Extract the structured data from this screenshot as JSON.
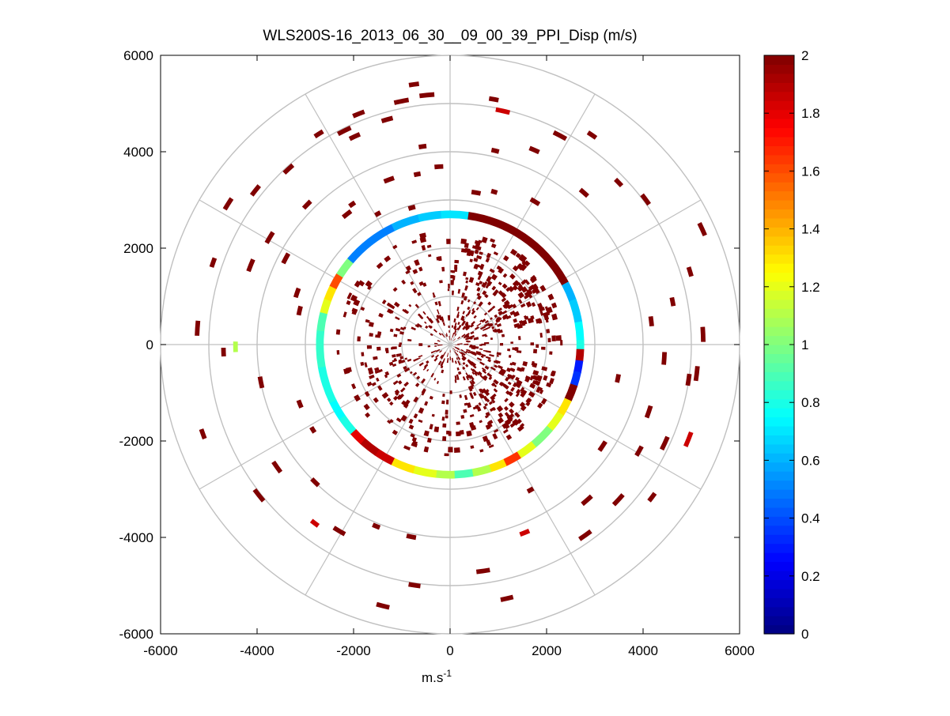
{
  "chart_data": {
    "type": "heatmap",
    "subtype": "polar-ppi",
    "title": "WLS200S-16_2013_06_30__09_00_39_PPI_Disp (m/s)",
    "xlabel": "m.s",
    "xlabel_superscript": "-1",
    "ylabel": "",
    "xlim": [
      -6000,
      6000
    ],
    "ylim": [
      -6000,
      6000
    ],
    "xticks": [
      -6000,
      -4000,
      -2000,
      0,
      2000,
      4000,
      6000
    ],
    "yticks": [
      6000,
      4000,
      2000,
      0,
      -2000,
      -4000,
      -6000
    ],
    "range_rings": [
      1000,
      2000,
      3000,
      4000,
      5000,
      6000
    ],
    "radial_lines_deg": [
      0,
      30,
      60,
      90,
      120,
      150,
      180,
      210,
      240,
      270,
      300,
      330
    ],
    "colorbar": {
      "min": 0,
      "max": 2,
      "ticks": [
        0,
        0.2,
        0.4,
        0.6,
        0.8,
        1,
        1.2,
        1.4,
        1.6,
        1.8,
        2
      ],
      "colormap": "jet"
    },
    "ring_feature": {
      "radius": 2700,
      "samples": [
        {
          "az": 0,
          "v": 0.7
        },
        {
          "az": 8,
          "v": 2.0
        },
        {
          "az": 60,
          "v": 2.0
        },
        {
          "az": 62,
          "v": 0.6
        },
        {
          "az": 70,
          "v": 0.65
        },
        {
          "az": 80,
          "v": 0.75
        },
        {
          "az": 88,
          "v": 0.8
        },
        {
          "az": 92,
          "v": 1.9
        },
        {
          "az": 97,
          "v": 0.3
        },
        {
          "az": 102,
          "v": 0.35
        },
        {
          "az": 108,
          "v": 2.0
        },
        {
          "az": 115,
          "v": 1.3
        },
        {
          "az": 122,
          "v": 1.2
        },
        {
          "az": 130,
          "v": 1.0
        },
        {
          "az": 140,
          "v": 1.2
        },
        {
          "az": 148,
          "v": 1.65
        },
        {
          "az": 155,
          "v": 1.3
        },
        {
          "az": 162,
          "v": 1.1
        },
        {
          "az": 170,
          "v": 0.9
        },
        {
          "az": 178,
          "v": 1.1
        },
        {
          "az": 186,
          "v": 1.2
        },
        {
          "az": 196,
          "v": 1.3
        },
        {
          "az": 206,
          "v": 1.85
        },
        {
          "az": 214,
          "v": 1.9
        },
        {
          "az": 222,
          "v": 1.8
        },
        {
          "az": 228,
          "v": 0.8
        },
        {
          "az": 236,
          "v": 0.75
        },
        {
          "az": 244,
          "v": 0.8
        },
        {
          "az": 252,
          "v": 0.8
        },
        {
          "az": 260,
          "v": 0.85
        },
        {
          "az": 268,
          "v": 0.85
        },
        {
          "az": 276,
          "v": 0.9
        },
        {
          "az": 284,
          "v": 1.2
        },
        {
          "az": 290,
          "v": 1.3
        },
        {
          "az": 296,
          "v": 1.6
        },
        {
          "az": 302,
          "v": 1.0
        },
        {
          "az": 310,
          "v": 0.5
        },
        {
          "az": 322,
          "v": 0.5
        },
        {
          "az": 334,
          "v": 0.6
        },
        {
          "az": 346,
          "v": 0.65
        },
        {
          "az": 356,
          "v": 0.7
        }
      ]
    },
    "inner_scatter": {
      "r_min": 80,
      "r_max": 2300,
      "value": 2.0,
      "seed": 7
    },
    "outer_gates": [
      {
        "az": 351,
        "r": 5400,
        "v": 2.0
      },
      {
        "az": 353,
        "r": 5150,
        "v": 2.0
      },
      {
        "az": 347,
        "r": 5100,
        "v": 2.0
      },
      {
        "az": 343,
        "r": 4800,
        "v": 2.0
      },
      {
        "az": 337,
        "r": 5100,
        "v": 2.0
      },
      {
        "az": 334,
        "r": 4700,
        "v": 2.0
      },
      {
        "az": 351,
        "r": 4100,
        "v": 2.0
      },
      {
        "az": 355,
        "r": 3650,
        "v": 2.0
      },
      {
        "az": 348,
        "r": 3550,
        "v": 2.0
      },
      {
        "az": 343,
        "r": 2900,
        "v": 2.0
      },
      {
        "az": 9,
        "r": 5120,
        "v": 2.0
      },
      {
        "az": 11,
        "r": 4920,
        "v": 1.85
      },
      {
        "az": 12,
        "r": 4080,
        "v": 2.0
      },
      {
        "az": 22,
        "r": 4350,
        "v": 2.0
      },
      {
        "az": 26,
        "r": 4850,
        "v": 2.0
      },
      {
        "az": 8,
        "r": 3150,
        "v": 2.0
      },
      {
        "az": 15,
        "r": 3250,
        "v": 2.0
      },
      {
        "az": 29,
        "r": 3400,
        "v": 2.0
      },
      {
        "az": 40,
        "r": 4150,
        "v": 2.0
      },
      {
        "az": 33,
        "r": 5200,
        "v": 2.0
      },
      {
        "az": 45,
        "r": 4800,
        "v": 2.0
      },
      {
        "az": 52,
        "r": 5000,
        "v": 2.0
      },
      {
        "az": 64,
        "r": 5700,
        "v": 2.0
      },
      {
        "az": 72,
        "r": 5150,
        "v": 2.0
      },
      {
        "az": 78,
        "r": 4650,
        "v": 2.0
      },
      {
        "az": 82,
        "r": 4150,
        "v": 2.0
      },
      {
        "az": 86,
        "r": 5200,
        "v": 2.0
      },
      {
        "az": 92,
        "r": 4400,
        "v": 2.0
      },
      {
        "az": 95,
        "r": 5100,
        "v": 2.0
      },
      {
        "az": 97,
        "r": 4950,
        "v": 2.0
      },
      {
        "az": 100,
        "r": 3500,
        "v": 2.0
      },
      {
        "az": 107,
        "r": 4300,
        "v": 2.0
      },
      {
        "az": 110,
        "r": 5270,
        "v": 1.85
      },
      {
        "az": 113,
        "r": 4850,
        "v": 2.0
      },
      {
        "az": 118,
        "r": 4450,
        "v": 2.0
      },
      {
        "az": 122,
        "r": 3750,
        "v": 2.0
      },
      {
        "az": 126,
        "r": 5200,
        "v": 2.0
      },
      {
        "az": 131,
        "r": 4700,
        "v": 2.0
      },
      {
        "az": 137,
        "r": 4250,
        "v": 2.0
      },
      {
        "az": 143,
        "r": 4800,
        "v": 2.0
      },
      {
        "az": 150,
        "r": 3400,
        "v": 2.0
      },
      {
        "az": 157,
        "r": 4150,
        "v": 1.85
      },
      {
        "az": 166,
        "r": 5350,
        "v": 2.0
      },
      {
        "az": 170,
        "r": 4700,
        "v": 2.0
      },
      {
        "az": 190,
        "r": 4020,
        "v": 2.0
      },
      {
        "az": 187,
        "r": 5000,
        "v": 2.0
      },
      {
        "az": 193,
        "r": 5550,
        "v": 2.0
      },
      {
        "az": 201,
        "r": 4020,
        "v": 2.0
      },
      {
        "az": 209,
        "r": 4450,
        "v": 2.0
      },
      {
        "az": 216,
        "r": 4600,
        "v": 1.85
      },
      {
        "az": 223,
        "r": 3950,
        "v": 2.0
      },
      {
        "az": 230,
        "r": 5000,
        "v": 2.0
      },
      {
        "az": 237,
        "r": 3300,
        "v": 2.0
      },
      {
        "az": 233,
        "r": 4350,
        "v": 2.0
      },
      {
        "az": 247,
        "r": 3300,
        "v": 2.0
      },
      {
        "az": 249,
        "r": 5400,
        "v": 2.0
      },
      {
        "az": 257,
        "r": 3950,
        "v": 2.0
      },
      {
        "az": 267,
        "r": 4650,
        "v": 2.0
      },
      {
        "az": 268,
        "r": 4400,
        "v": 1.1
      },
      {
        "az": 272,
        "r": 5200,
        "v": 2.0
      },
      {
        "az": 281,
        "r": 3150,
        "v": 2.0
      },
      {
        "az": 287,
        "r": 3300,
        "v": 2.0
      },
      {
        "az": 288,
        "r": 5150,
        "v": 2.0
      },
      {
        "az": 290,
        "r": 4400,
        "v": 2.0
      },
      {
        "az": 296,
        "r": 3800,
        "v": 2.0
      },
      {
        "az": 299,
        "r": 4300,
        "v": 2.0
      },
      {
        "az": 301,
        "r": 5400,
        "v": 2.0
      },
      {
        "az": 307,
        "r": 5100,
        "v": 2.0
      },
      {
        "az": 313,
        "r": 4100,
        "v": 2.0
      },
      {
        "az": 316,
        "r": 4900,
        "v": 2.0
      },
      {
        "az": 320,
        "r": 3400,
        "v": 2.0
      },
      {
        "az": 324,
        "r": 3500,
        "v": 2.0
      },
      {
        "az": 327,
        "r": 5100,
        "v": 2.0
      },
      {
        "az": 330,
        "r": 3050,
        "v": 2.0
      },
      {
        "az": 332,
        "r": 4900,
        "v": 2.0
      },
      {
        "az": 338,
        "r": 3600,
        "v": 2.0
      }
    ]
  }
}
